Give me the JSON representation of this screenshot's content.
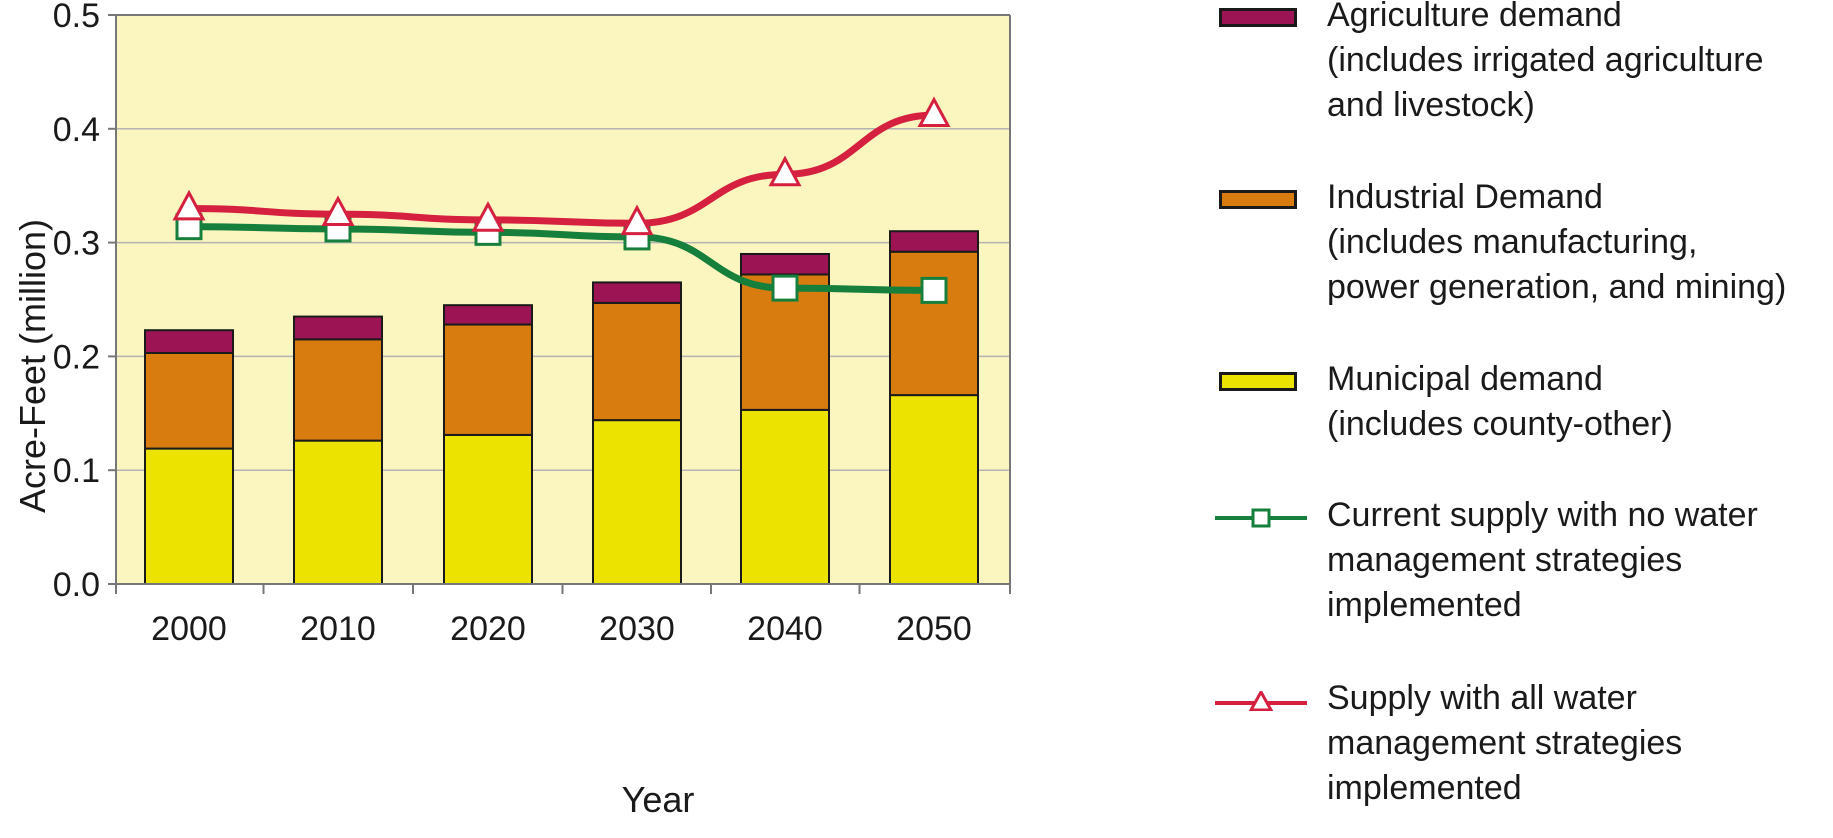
{
  "chart_data": {
    "type": "bar",
    "stacked": true,
    "categories": [
      "2000",
      "2010",
      "2020",
      "2030",
      "2040",
      "2050"
    ],
    "xlabel": "Year",
    "ylabel": "Acre-Feet (million)",
    "ylim": [
      0,
      0.5
    ],
    "yticks": [
      "0.0",
      "0.1",
      "0.2",
      "0.3",
      "0.4",
      "0.5"
    ],
    "ytick_values": [
      0,
      0.1,
      0.2,
      0.3,
      0.4,
      0.5
    ],
    "grid": true,
    "legend_position": "right",
    "plot_background": "#fbf5c0",
    "series": [
      {
        "name": "Municipal demand\n(includes county-other)",
        "type": "bar",
        "color": "#ece300",
        "values": [
          0.119,
          0.126,
          0.131,
          0.144,
          0.153,
          0.166
        ]
      },
      {
        "name": "Industrial Demand\n(includes manufacturing,\npower generation, and mining)",
        "type": "bar",
        "color": "#d97c10",
        "values": [
          0.084,
          0.089,
          0.097,
          0.103,
          0.119,
          0.126
        ]
      },
      {
        "name": "Agriculture demand\n(includes irrigated agriculture\nand livestock)",
        "type": "bar",
        "color": "#9c1454",
        "values": [
          0.02,
          0.02,
          0.017,
          0.018,
          0.018,
          0.018
        ]
      },
      {
        "name": "Current supply with no water\nmanagement strategies\nimplemented",
        "type": "line",
        "color": "#167f3c",
        "marker": "square",
        "values": [
          0.314,
          0.312,
          0.309,
          0.305,
          0.26,
          0.258
        ]
      },
      {
        "name": "Supply with all water\nmanagement strategies\nimplemented",
        "type": "line",
        "color": "#d5203f",
        "marker": "triangle",
        "values": [
          0.33,
          0.325,
          0.32,
          0.317,
          0.36,
          0.412
        ]
      }
    ],
    "legend_order": [
      2,
      1,
      0,
      3,
      4
    ]
  }
}
